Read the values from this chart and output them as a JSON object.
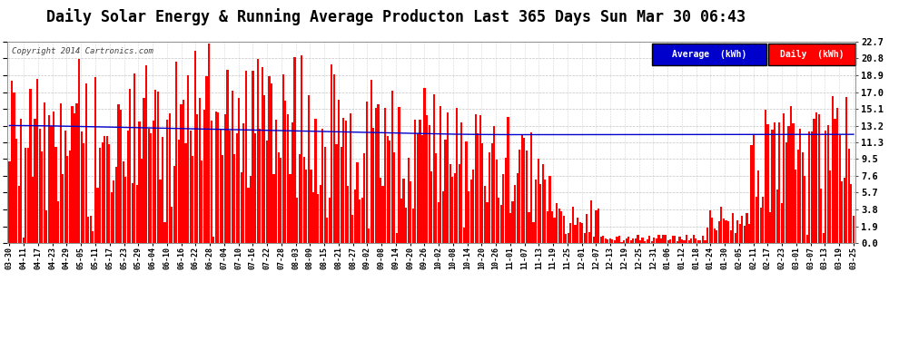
{
  "title": "Daily Solar Energy & Running Average Producton Last 365 Days Sun Mar 30 06:43",
  "copyright": "Copyright 2014 Cartronics.com",
  "ylabel_right": [
    "22.7",
    "20.8",
    "18.9",
    "17.0",
    "15.1",
    "13.2",
    "11.3",
    "9.5",
    "7.6",
    "5.7",
    "3.8",
    "1.9",
    "0.0"
  ],
  "yticks": [
    22.7,
    20.8,
    18.9,
    17.0,
    15.1,
    13.2,
    11.3,
    9.5,
    7.6,
    5.7,
    3.8,
    1.9,
    0.0
  ],
  "ymax": 22.7,
  "bar_color": "#FF0000",
  "avg_color": "#0000CC",
  "bg_color": "#FFFFFF",
  "grid_color": "#AAAAAA",
  "title_fontsize": 12,
  "legend_avg_color": "#0000CC",
  "legend_daily_color": "#FF0000",
  "num_bars": 365,
  "x_tick_labels": [
    "03-30",
    "04-11",
    "04-17",
    "04-23",
    "04-29",
    "05-05",
    "05-11",
    "05-17",
    "05-23",
    "05-29",
    "06-04",
    "06-10",
    "06-16",
    "06-22",
    "06-28",
    "07-04",
    "07-10",
    "07-16",
    "07-22",
    "07-28",
    "08-03",
    "08-09",
    "08-15",
    "08-21",
    "08-27",
    "09-02",
    "09-08",
    "09-14",
    "09-20",
    "09-26",
    "10-02",
    "10-08",
    "10-14",
    "10-20",
    "10-26",
    "11-01",
    "11-07",
    "11-13",
    "11-19",
    "11-25",
    "12-01",
    "12-07",
    "12-13",
    "12-19",
    "12-25",
    "12-31",
    "01-06",
    "01-12",
    "01-18",
    "01-24",
    "01-30",
    "02-05",
    "02-11",
    "02-17",
    "02-23",
    "03-01",
    "03-07",
    "03-13",
    "03-19",
    "03-25"
  ]
}
